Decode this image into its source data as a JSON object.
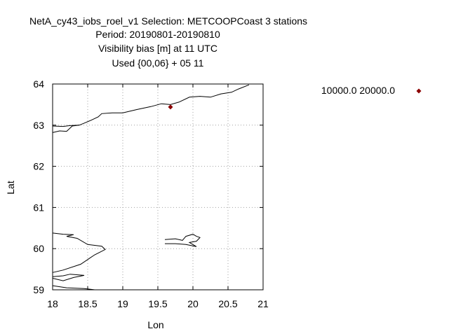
{
  "title": {
    "line1": "NetA_cy43_iobs_roel_v1   Selection: METCOOPCoast      3 stations",
    "line2": "Period: 20190801-20190810",
    "line3": "Visibility bias [m] at  11 UTC",
    "line4": "Used {00,06} + 05 11"
  },
  "axes": {
    "xlabel": "Lon",
    "ylabel": "Lat",
    "xlim": [
      18,
      21
    ],
    "ylim": [
      59,
      64
    ],
    "xticks": [
      "18",
      "18.5",
      "19",
      "19.5",
      "20",
      "20.5",
      "21"
    ],
    "yticks": [
      "59",
      "60",
      "61",
      "62",
      "63",
      "64"
    ],
    "grid": true,
    "grid_style": "dotted"
  },
  "legend": {
    "placement": "top-right",
    "label": "10000.0 20000.0",
    "marker_color": "#8b0000"
  },
  "chart_data": {
    "type": "scatter",
    "title": "NetA_cy43_iobs_roel_v1   Selection: METCOOPCoast      3 stations",
    "xlabel": "Lon",
    "ylabel": "Lat",
    "xlim": [
      18,
      21
    ],
    "ylim": [
      59,
      64
    ],
    "series": [
      {
        "name": "10000.0 20000.0",
        "color": "#8b0000",
        "marker": "diamond",
        "points": [
          {
            "x": 19.68,
            "y": 63.44
          }
        ]
      }
    ],
    "coastlines": [
      [
        [
          18.0,
          62.82
        ],
        [
          18.1,
          62.86
        ],
        [
          18.2,
          62.85
        ],
        [
          18.28,
          62.98
        ],
        [
          18.38,
          63.0
        ],
        [
          18.45,
          63.05
        ],
        [
          18.55,
          63.12
        ],
        [
          18.65,
          63.2
        ],
        [
          18.7,
          63.28
        ],
        [
          18.85,
          63.3
        ],
        [
          19.0,
          63.3
        ],
        [
          19.2,
          63.38
        ],
        [
          19.4,
          63.45
        ],
        [
          19.55,
          63.52
        ],
        [
          19.68,
          63.5
        ],
        [
          19.8,
          63.56
        ],
        [
          19.95,
          63.68
        ],
        [
          20.1,
          63.7
        ],
        [
          20.25,
          63.68
        ],
        [
          20.4,
          63.76
        ],
        [
          20.55,
          63.8
        ],
        [
          20.65,
          63.88
        ],
        [
          20.8,
          63.98
        ]
      ],
      [
        [
          18.0,
          62.98
        ],
        [
          18.15,
          62.97
        ],
        [
          18.25,
          62.99
        ],
        [
          18.38,
          63.0
        ]
      ],
      [
        [
          18.0,
          60.38
        ],
        [
          18.15,
          60.35
        ],
        [
          18.3,
          60.34
        ],
        [
          18.2,
          60.3
        ],
        [
          18.35,
          60.25
        ],
        [
          18.5,
          60.1
        ],
        [
          18.7,
          60.06
        ],
        [
          18.75,
          59.98
        ],
        [
          18.6,
          59.85
        ],
        [
          18.4,
          59.62
        ],
        [
          18.15,
          59.48
        ],
        [
          18.0,
          59.42
        ]
      ],
      [
        [
          18.0,
          59.28
        ],
        [
          18.15,
          59.22
        ],
        [
          18.3,
          59.3
        ],
        [
          18.45,
          59.35
        ],
        [
          18.25,
          59.38
        ],
        [
          18.15,
          59.34
        ],
        [
          18.0,
          59.32
        ]
      ],
      [
        [
          18.0,
          59.1
        ],
        [
          18.2,
          59.05
        ],
        [
          18.45,
          59.03
        ],
        [
          18.6,
          59.0
        ]
      ],
      [
        [
          19.6,
          60.22
        ],
        [
          19.75,
          60.24
        ],
        [
          19.85,
          60.2
        ],
        [
          19.9,
          60.3
        ],
        [
          20.0,
          60.35
        ],
        [
          20.05,
          60.3
        ],
        [
          20.1,
          60.27
        ],
        [
          20.05,
          60.18
        ],
        [
          19.95,
          60.15
        ],
        [
          20.05,
          60.05
        ],
        [
          19.9,
          60.1
        ],
        [
          19.75,
          60.12
        ],
        [
          19.6,
          60.12
        ]
      ]
    ]
  }
}
